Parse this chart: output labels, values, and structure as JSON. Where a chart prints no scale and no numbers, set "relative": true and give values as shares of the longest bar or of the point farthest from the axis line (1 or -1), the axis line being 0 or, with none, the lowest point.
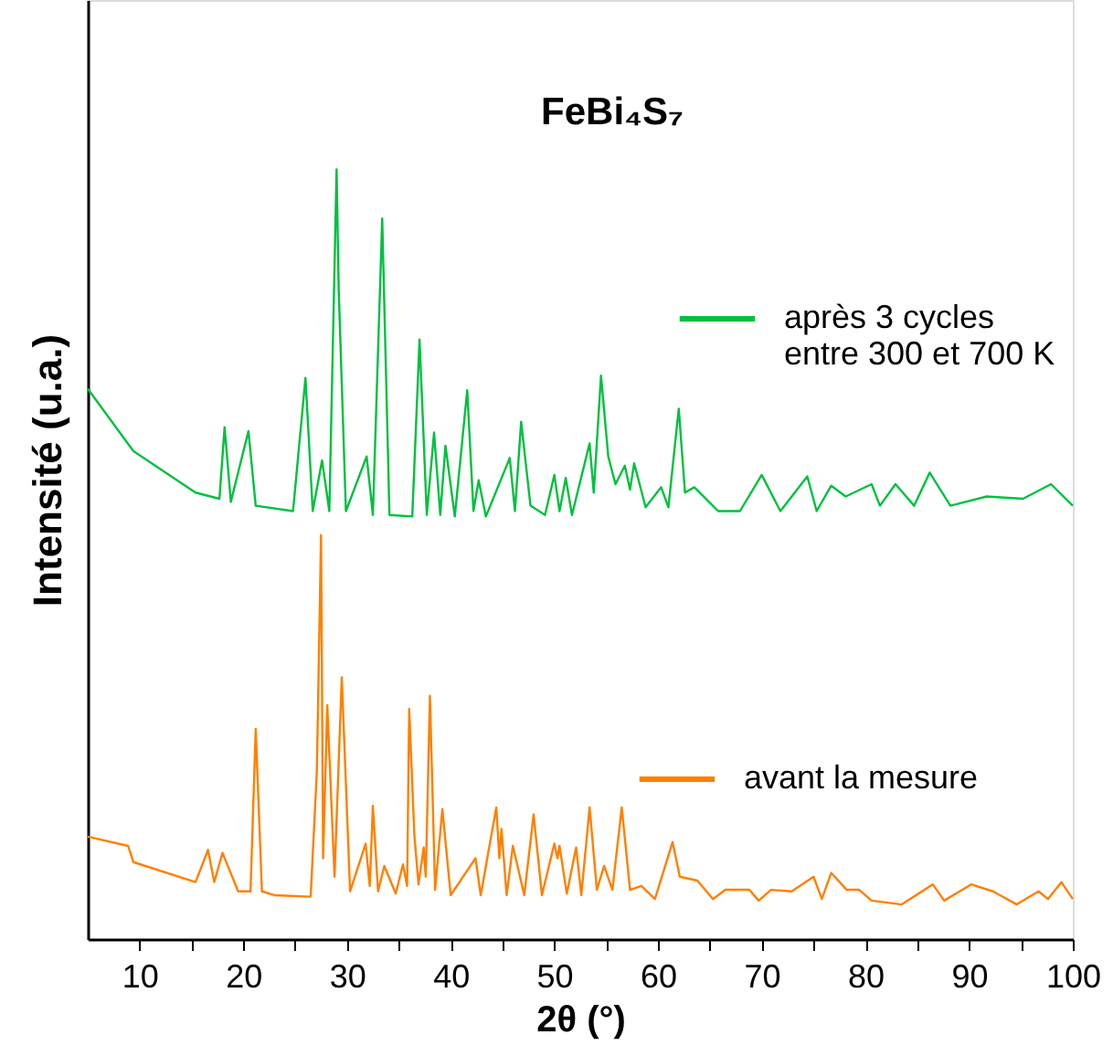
{
  "chart_data": {
    "type": "line",
    "relative": true,
    "title": "FeBi₄S₇",
    "xlabel": "2θ (°)",
    "ylabel": "Intensité (u.a.)",
    "xlim": [
      5,
      100
    ],
    "xticks": [
      {
        "value": 10,
        "label": "10"
      },
      {
        "value": 15,
        "label": null
      },
      {
        "value": 20,
        "label": "20"
      },
      {
        "value": 25,
        "label": null
      },
      {
        "value": 30,
        "label": "30"
      },
      {
        "value": 35,
        "label": null
      },
      {
        "value": 40,
        "label": "40"
      },
      {
        "value": 45,
        "label": null
      },
      {
        "value": 50,
        "label": "50"
      },
      {
        "value": 55,
        "label": null
      },
      {
        "value": 60,
        "label": "60"
      },
      {
        "value": 65,
        "label": null
      },
      {
        "value": 70,
        "label": "70"
      },
      {
        "value": 75,
        "label": null
      },
      {
        "value": 80,
        "label": "80"
      },
      {
        "value": 85,
        "label": null
      },
      {
        "value": 90,
        "label": "90"
      },
      {
        "value": 95,
        "label": null
      },
      {
        "value": 100,
        "label": "100"
      }
    ],
    "tick_labels": "x",
    "grid": false,
    "legend": "right",
    "marker": "none",
    "line_style": "solid",
    "series": [
      {
        "name": "après 3 cycles\nentre 300 et 700 K",
        "color": "#00c040",
        "x": [
          5.0,
          9.4,
          15.4,
          17.7,
          18.2,
          18.8,
          20.5,
          21.2,
          24.8,
          26.0,
          26.7,
          27.6,
          28.3,
          29.0,
          29.2,
          29.9,
          31.9,
          32.5,
          33.4,
          34.1,
          36.3,
          37.0,
          37.7,
          38.4,
          39.0,
          39.5,
          40.4,
          41.6,
          42.2,
          42.7,
          43.4,
          45.7,
          46.2,
          46.8,
          47.7,
          49.1,
          50.0,
          50.5,
          51.1,
          51.7,
          53.4,
          53.8,
          54.5,
          55.2,
          55.9,
          56.8,
          57.3,
          57.7,
          58.8,
          60.3,
          61.0,
          62.0,
          62.6,
          63.5,
          65.8,
          67.9,
          70.0,
          71.8,
          74.4,
          75.3,
          76.7,
          78.1,
          80.6,
          81.4,
          82.9,
          84.7,
          86.2,
          88.2,
          91.7,
          95.2,
          97.9,
          100
        ],
        "values": [
          0.715,
          0.634,
          0.58,
          0.572,
          0.665,
          0.568,
          0.66,
          0.563,
          0.556,
          0.729,
          0.556,
          0.622,
          0.556,
          1.0,
          0.846,
          0.556,
          0.627,
          0.551,
          0.936,
          0.551,
          0.549,
          0.779,
          0.551,
          0.658,
          0.551,
          0.641,
          0.549,
          0.713,
          0.556,
          0.596,
          0.549,
          0.625,
          0.556,
          0.672,
          0.563,
          0.551,
          0.603,
          0.556,
          0.599,
          0.551,
          0.644,
          0.58,
          0.732,
          0.627,
          0.591,
          0.615,
          0.584,
          0.618,
          0.561,
          0.587,
          0.561,
          0.689,
          0.58,
          0.587,
          0.556,
          0.556,
          0.603,
          0.556,
          0.601,
          0.556,
          0.589,
          0.575,
          0.591,
          0.563,
          0.591,
          0.563,
          0.606,
          0.563,
          0.575,
          0.572,
          0.591,
          0.563
        ]
      },
      {
        "name": "avant la mesure",
        "color": "#ff8000",
        "x": [
          5.0,
          8.9,
          9.4,
          15.4,
          16.6,
          17.2,
          18.0,
          19.5,
          20.7,
          21.2,
          21.8,
          23.0,
          26.5,
          27.1,
          27.5,
          27.7,
          28.1,
          28.8,
          29.5,
          30.3,
          31.8,
          32.2,
          32.5,
          33.0,
          33.6,
          34.7,
          35.4,
          35.8,
          36.0,
          36.5,
          36.9,
          37.4,
          37.6,
          38.0,
          38.5,
          39.2,
          40.0,
          42.4,
          42.9,
          44.4,
          44.7,
          44.9,
          45.4,
          46.0,
          47.1,
          48.0,
          48.8,
          50.0,
          50.3,
          50.5,
          51.2,
          52.1,
          52.6,
          53.4,
          54.1,
          54.8,
          55.6,
          56.5,
          57.3,
          58.4,
          59.7,
          61.4,
          62.1,
          63.8,
          65.3,
          66.5,
          68.8,
          69.7,
          70.9,
          72.9,
          75.0,
          75.8,
          76.7,
          78.2,
          79.4,
          80.6,
          83.5,
          86.5,
          87.6,
          90.2,
          92.3,
          94.6,
          96.7,
          97.6,
          98.9,
          100
        ],
        "values": [
          0.133,
          0.121,
          0.1,
          0.074,
          0.116,
          0.074,
          0.112,
          0.062,
          0.062,
          0.273,
          0.062,
          0.057,
          0.055,
          0.219,
          0.525,
          0.105,
          0.304,
          0.081,
          0.34,
          0.062,
          0.124,
          0.069,
          0.173,
          0.062,
          0.095,
          0.059,
          0.097,
          0.069,
          0.299,
          0.135,
          0.071,
          0.119,
          0.081,
          0.316,
          0.064,
          0.169,
          0.057,
          0.105,
          0.057,
          0.171,
          0.105,
          0.143,
          0.057,
          0.121,
          0.057,
          0.162,
          0.057,
          0.124,
          0.105,
          0.121,
          0.059,
          0.119,
          0.057,
          0.171,
          0.064,
          0.095,
          0.064,
          0.171,
          0.064,
          0.069,
          0.052,
          0.126,
          0.081,
          0.076,
          0.052,
          0.064,
          0.064,
          0.05,
          0.064,
          0.062,
          0.081,
          0.052,
          0.086,
          0.064,
          0.064,
          0.05,
          0.045,
          0.071,
          0.05,
          0.071,
          0.062,
          0.045,
          0.062,
          0.052,
          0.074,
          0.052
        ]
      }
    ]
  }
}
